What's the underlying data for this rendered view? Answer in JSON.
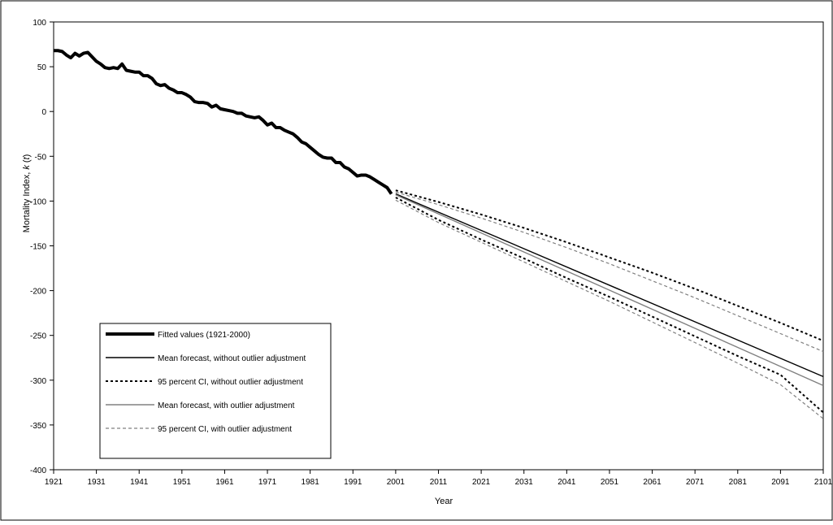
{
  "chart_data": {
    "type": "line",
    "title": "",
    "xlabel": "Year",
    "ylabel_main": "Mortality Index, ",
    "ylabel_var": "k",
    "ylabel_paren_open": " (",
    "ylabel_italic_t": "t",
    "ylabel_paren_close": ")",
    "xlim": [
      1921,
      2101
    ],
    "ylim": [
      -400,
      100
    ],
    "x_ticks": [
      1921,
      1931,
      1941,
      1951,
      1961,
      1971,
      1981,
      1991,
      2001,
      2011,
      2021,
      2031,
      2041,
      2051,
      2061,
      2071,
      2081,
      2091,
      2101
    ],
    "y_ticks": [
      100,
      50,
      0,
      -50,
      -100,
      -150,
      -200,
      -250,
      -300,
      -350,
      -400
    ],
    "grid": false,
    "legend_position": "lower-left",
    "series": [
      {
        "name": "Fitted values (1921-2000)",
        "color": "#000000",
        "style": "thick-solid",
        "x": [
          1921,
          1922,
          1923,
          1924,
          1925,
          1926,
          1927,
          1928,
          1929,
          1930,
          1931,
          1932,
          1933,
          1934,
          1935,
          1936,
          1937,
          1938,
          1939,
          1940,
          1941,
          1942,
          1943,
          1944,
          1945,
          1946,
          1947,
          1948,
          1949,
          1950,
          1951,
          1952,
          1953,
          1954,
          1955,
          1956,
          1957,
          1958,
          1959,
          1960,
          1961,
          1962,
          1963,
          1964,
          1965,
          1966,
          1967,
          1968,
          1969,
          1970,
          1971,
          1972,
          1973,
          1974,
          1975,
          1976,
          1977,
          1978,
          1979,
          1980,
          1981,
          1982,
          1983,
          1984,
          1985,
          1986,
          1987,
          1988,
          1989,
          1990,
          1991,
          1992,
          1993,
          1994,
          1995,
          1996,
          1997,
          1998,
          1999,
          2000
        ],
        "y": [
          68,
          68,
          67,
          63,
          60,
          65,
          62,
          65,
          66,
          61,
          56,
          53,
          49,
          48,
          49,
          48,
          53,
          46,
          45,
          44,
          44,
          40,
          40,
          37,
          31,
          29,
          30,
          26,
          24,
          21,
          21,
          19,
          16,
          11,
          10,
          10,
          9,
          5,
          7,
          3,
          2,
          1,
          0,
          -2,
          -2,
          -5,
          -6,
          -7,
          -6,
          -10,
          -15,
          -13,
          -18,
          -18,
          -21,
          -23,
          -25,
          -29,
          -34,
          -36,
          -40,
          -44,
          -48,
          -51,
          -52,
          -52,
          -57,
          -57,
          -62,
          -64,
          -68,
          -72,
          -71,
          -71,
          -73,
          -76,
          -79,
          -82,
          -85,
          -92
        ]
      },
      {
        "name": "Mean forecast, without outlier adjustment",
        "color": "#000000",
        "style": "solid",
        "x": [
          2001,
          2101
        ],
        "y": [
          -92,
          -296
        ]
      },
      {
        "name": "95 percent CI, without outlier adjustment",
        "color": "#000000",
        "style": "dotted",
        "x": [
          2001,
          2011,
          2021,
          2031,
          2041,
          2051,
          2061,
          2071,
          2081,
          2091,
          2101
        ],
        "y_upper": [
          -88,
          -101,
          -115,
          -130,
          -146,
          -163,
          -180,
          -198,
          -217,
          -236,
          -256
        ],
        "y_lower": [
          -96,
          -121,
          -143,
          -164,
          -186,
          -207,
          -229,
          -251,
          -273,
          -294,
          -336
        ]
      },
      {
        "name": "Mean forecast, with outlier adjustment",
        "color": "#808080",
        "style": "solid",
        "x": [
          2001,
          2101
        ],
        "y": [
          -93,
          -306
        ]
      },
      {
        "name": "95 percent CI, with outlier adjustment",
        "color": "#808080",
        "style": "dashed",
        "x": [
          2001,
          2011,
          2021,
          2031,
          2041,
          2051,
          2061,
          2071,
          2081,
          2091,
          2101
        ],
        "y_upper": [
          -90,
          -104,
          -119,
          -135,
          -152,
          -170,
          -189,
          -208,
          -228,
          -248,
          -268
        ],
        "y_lower": [
          -99,
          -124,
          -146,
          -168,
          -190,
          -212,
          -235,
          -258,
          -281,
          -305,
          -343
        ]
      }
    ]
  }
}
